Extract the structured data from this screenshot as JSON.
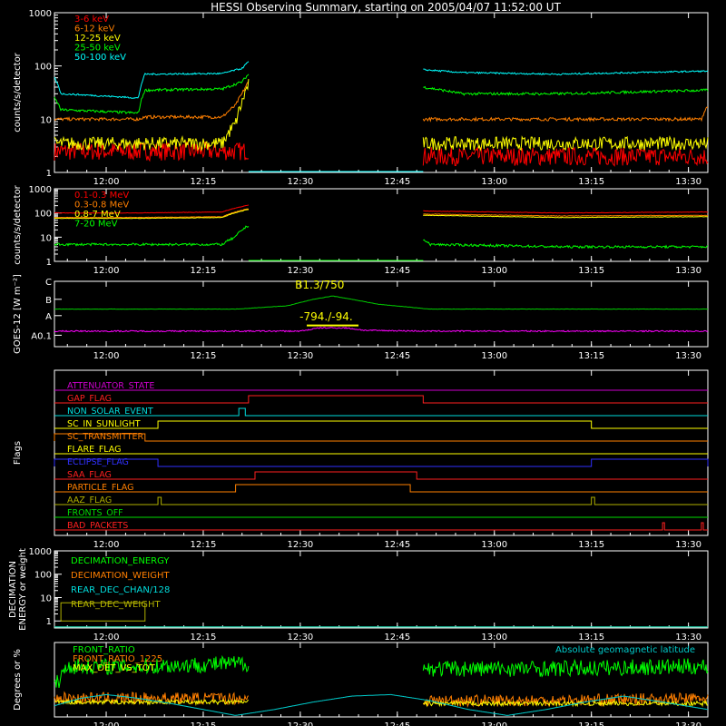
{
  "title": "HESSI Observing Summary, starting on 2005/04/07 11:52:00 UT",
  "time_axis": {
    "start": "11:52",
    "end": "13:33",
    "ticks": [
      "12:00",
      "12:15",
      "12:30",
      "12:45",
      "13:00",
      "13:15",
      "13:30"
    ]
  },
  "chart_data": [
    {
      "type": "line",
      "id": "low-energy",
      "ylabel": "counts/s/detector",
      "yscale": "log",
      "ylim": [
        1,
        1000
      ],
      "yticks": [
        "1",
        "10",
        "100",
        "1000"
      ],
      "data_gaps": [
        [
          "12:22",
          "12:49"
        ]
      ],
      "series": [
        {
          "name": "3-6 keV",
          "color": "#ff0000",
          "segments": [
            {
              "t": [
                "11:52",
                "12:05",
                "12:22"
              ],
              "v": [
                2.5,
                2.5,
                2.5
              ]
            },
            {
              "t": [
                "12:49",
                "13:10",
                "13:33"
              ],
              "v": [
                2.0,
                2.0,
                2.0
              ]
            }
          ]
        },
        {
          "name": "6-12 keV",
          "color": "#ff7f00",
          "segments": [
            {
              "t": [
                "11:52",
                "12:05",
                "12:06",
                "12:18",
                "12:20",
                "12:21",
                "12:22"
              ],
              "v": [
                10,
                10,
                11,
                11,
                18,
                30,
                50
              ]
            },
            {
              "t": [
                "12:49",
                "13:10",
                "13:32",
                "13:33"
              ],
              "v": [
                10,
                10,
                10,
                18
              ]
            }
          ]
        },
        {
          "name": "12-25 keV",
          "color": "#ffff00",
          "segments": [
            {
              "t": [
                "11:52",
                "12:05",
                "12:18",
                "12:20",
                "12:21",
                "12:22"
              ],
              "v": [
                3.5,
                3.5,
                3.5,
                8,
                20,
                45
              ]
            },
            {
              "t": [
                "12:49",
                "13:10",
                "13:33"
              ],
              "v": [
                3.5,
                3.5,
                3.5
              ]
            }
          ]
        },
        {
          "name": "25-50 keV",
          "color": "#00ff00",
          "segments": [
            {
              "t": [
                "11:52",
                "11:53",
                "12:05",
                "12:06",
                "12:18",
                "12:21",
                "12:22"
              ],
              "v": [
                25,
                15,
                13,
                35,
                37,
                50,
                70
              ]
            },
            {
              "t": [
                "12:49",
                "12:55",
                "13:10",
                "13:33"
              ],
              "v": [
                40,
                30,
                30,
                35
              ]
            }
          ]
        },
        {
          "name": "50-100 keV",
          "color": "#00ffff",
          "segments": [
            {
              "t": [
                "11:52",
                "11:53",
                "12:05",
                "12:06",
                "12:18",
                "12:21",
                "12:22"
              ],
              "v": [
                60,
                30,
                25,
                70,
                72,
                90,
                120
              ]
            },
            {
              "t": [
                "12:49",
                "12:55",
                "13:10",
                "13:33"
              ],
              "v": [
                85,
                75,
                70,
                80
              ]
            }
          ]
        }
      ]
    },
    {
      "type": "line",
      "id": "high-energy",
      "ylabel": "counts/s/detector",
      "yscale": "log",
      "ylim": [
        1,
        1000
      ],
      "yticks": [
        "1",
        "10",
        "100",
        "1000"
      ],
      "data_gaps": [
        [
          "12:22",
          "12:49"
        ]
      ],
      "series": [
        {
          "name": "0.1-0.3 MeV",
          "color": "#ff0000",
          "segments": [
            {
              "t": [
                "11:52",
                "12:05",
                "12:18",
                "12:22"
              ],
              "v": [
                100,
                100,
                110,
                210
              ]
            },
            {
              "t": [
                "12:49",
                "13:10",
                "13:33"
              ],
              "v": [
                120,
                100,
                110
              ]
            }
          ]
        },
        {
          "name": "0.3-0.8 MeV",
          "color": "#ff7f00",
          "segments": [
            {
              "t": [
                "11:52",
                "12:05",
                "12:18",
                "12:22"
              ],
              "v": [
                65,
                65,
                70,
                150
              ]
            },
            {
              "t": [
                "12:49",
                "13:10",
                "13:33"
              ],
              "v": [
                90,
                75,
                80
              ]
            }
          ]
        },
        {
          "name": "0.8-7 MeV",
          "color": "#ffff00",
          "segments": [
            {
              "t": [
                "11:52",
                "12:05",
                "12:18",
                "12:22"
              ],
              "v": [
                60,
                60,
                65,
                140
              ]
            },
            {
              "t": [
                "12:49",
                "13:10",
                "13:33"
              ],
              "v": [
                80,
                65,
                70
              ]
            }
          ]
        },
        {
          "name": "7-20 MeV",
          "color": "#00ff00",
          "segments": [
            {
              "t": [
                "11:52",
                "12:05",
                "12:18",
                "12:20",
                "12:22"
              ],
              "v": [
                5,
                5,
                5,
                10,
                30
              ]
            },
            {
              "t": [
                "12:49",
                "12:50",
                "13:10",
                "13:33"
              ],
              "v": [
                8,
                5,
                4,
                4
              ]
            }
          ]
        }
      ]
    },
    {
      "type": "line",
      "id": "goes",
      "ylabel": "GOES-12 [W m⁻²]",
      "ylim": [
        0,
        4
      ],
      "yticks": [
        "A0.1",
        "A",
        "B",
        "C"
      ],
      "series": [
        {
          "name": "",
          "color": "#00cc00",
          "t": [
            "11:52",
            "12:20",
            "12:28",
            "12:32",
            "12:35",
            "12:38",
            "12:42",
            "12:50",
            "13:33"
          ],
          "v": [
            2.3,
            2.3,
            2.5,
            2.9,
            3.1,
            2.9,
            2.6,
            2.3,
            2.3
          ]
        },
        {
          "name": "",
          "color": "#ff00ff",
          "t": [
            "11:52",
            "12:30",
            "12:33",
            "12:37",
            "12:40",
            "12:50",
            "13:33"
          ],
          "v": [
            0.95,
            0.95,
            1.15,
            1.15,
            1.0,
            0.95,
            0.95
          ]
        }
      ],
      "annotations": [
        {
          "text": "B1.3/750",
          "color": "#ffff00",
          "t": "12:33",
          "v": 3.55
        },
        {
          "text": "-794./-94.",
          "color": "#ffff00",
          "t": "12:34",
          "v": 1.6
        }
      ],
      "marker": {
        "t0": "12:31",
        "t1": "12:39",
        "v": 1.3,
        "color": "#ffff00"
      }
    },
    {
      "type": "line",
      "id": "flags",
      "ylabel": "Flags",
      "flags": [
        {
          "name": "ATTENUATOR_STATE",
          "color": "#cc00cc",
          "high": []
        },
        {
          "name": "GAP_FLAG",
          "color": "#ff2020",
          "high": [
            [
              "12:22",
              "12:49"
            ]
          ]
        },
        {
          "name": "NON_SOLAR_EVENT",
          "color": "#00dddd",
          "high": [
            [
              "12:20.5",
              "12:21.5"
            ]
          ]
        },
        {
          "name": "SC_IN_SUNLIGHT",
          "color": "#ffff00",
          "high": [
            [
              "12:08",
              "13:15"
            ]
          ]
        },
        {
          "name": "SC_TRANSMITTER",
          "color": "#ff7f00",
          "high": [
            [
              "11:52",
              "12:06"
            ]
          ]
        },
        {
          "name": "FLARE_FLAG",
          "color": "#ffff00",
          "high": []
        },
        {
          "name": "ECLIPSE_FLAG",
          "color": "#3030ff",
          "high": [
            [
              "11:52",
              "12:08"
            ],
            [
              "13:15",
              "13:33"
            ]
          ]
        },
        {
          "name": "SAA_FLAG",
          "color": "#ff2020",
          "high": [
            [
              "12:23",
              "12:48"
            ]
          ]
        },
        {
          "name": "PARTICLE_FLAG",
          "color": "#ff7f00",
          "high": [
            [
              "12:20",
              "12:47"
            ]
          ]
        },
        {
          "name": "AAZ_FLAG",
          "color": "#b0b000",
          "high": [
            [
              "12:08",
              "12:08.5"
            ],
            [
              "13:15",
              "13:15.5"
            ]
          ]
        },
        {
          "name": "FRONTS_OFF",
          "color": "#00dd00",
          "high": []
        },
        {
          "name": "BAD_PACKETS",
          "color": "#ff2020",
          "high": [
            [
              "13:26",
              "13:26.3"
            ],
            [
              "13:32",
              "13:32.3"
            ]
          ]
        }
      ]
    },
    {
      "type": "line",
      "id": "decimation",
      "ylabel": "DECIMATION ENERGY or weight",
      "yscale": "log",
      "ylim": [
        0.5,
        1000
      ],
      "yticks": [
        "1",
        "10",
        "100",
        "1000"
      ],
      "series": [
        {
          "name": "DECIMATION_ENERGY",
          "color": "#00ff00",
          "t": [
            "11:52",
            "13:33"
          ],
          "v": [
            0.55,
            0.55
          ]
        },
        {
          "name": "DECIMATION_WEIGHT",
          "color": "#ff7f00",
          "t": [
            "11:52",
            "13:33"
          ],
          "v": [
            0.55,
            0.55
          ]
        },
        {
          "name": "REAR_DEC_CHAN/128",
          "color": "#00dddd",
          "t": [
            "11:52",
            "13:33"
          ],
          "v": [
            0.55,
            0.55
          ]
        },
        {
          "name": "REAR_DEC_WEIGHT",
          "color": "#b0b000",
          "box": [
            "11:53",
            "12:06",
            1,
            6
          ]
        }
      ]
    },
    {
      "type": "line",
      "id": "ratios",
      "ylabel": "Degrees or %",
      "ylim": [
        0,
        100
      ],
      "data_gaps": [
        [
          "12:22",
          "12:49"
        ]
      ],
      "series": [
        {
          "name": "FRONT_RATIO",
          "color": "#00ff00",
          "segments": [
            {
              "t": [
                "11:52",
                "11:54",
                "12:05",
                "12:22"
              ],
              "v": [
                40,
                68,
                68,
                72
              ]
            },
            {
              "t": [
                "12:49",
                "13:10",
                "13:33"
              ],
              "v": [
                65,
                65,
                68
              ]
            }
          ]
        },
        {
          "name": "FRONT_RATIO_1225",
          "color": "#ff7f00",
          "segments": [
            {
              "t": [
                "11:52",
                "12:05",
                "12:22"
              ],
              "v": [
                25,
                25,
                25
              ]
            },
            {
              "t": [
                "12:49",
                "13:10",
                "13:33"
              ],
              "v": [
                22,
                22,
                25
              ]
            }
          ]
        },
        {
          "name": "MAX_DET_VS_TOT",
          "color": "#ffff00",
          "segments": [
            {
              "t": [
                "11:52",
                "12:05",
                "12:22"
              ],
              "v": [
                20,
                20,
                20
              ]
            },
            {
              "t": [
                "12:49",
                "13:10",
                "13:33"
              ],
              "v": [
                18,
                18,
                18
              ]
            }
          ]
        },
        {
          "name": "Absolute geomagnetic latitude",
          "color": "#00cccc",
          "t": [
            "11:52",
            "11:56",
            "12:00",
            "12:05",
            "12:10",
            "12:15",
            "12:20",
            "12:26",
            "12:32",
            "12:38",
            "12:44",
            "12:50",
            "12:56",
            "13:02",
            "13:08",
            "13:14",
            "13:20",
            "13:26",
            "13:33"
          ],
          "v": [
            15,
            25,
            30,
            25,
            18,
            10,
            2,
            10,
            20,
            28,
            30,
            22,
            10,
            2,
            10,
            20,
            28,
            20,
            10
          ]
        }
      ]
    }
  ]
}
